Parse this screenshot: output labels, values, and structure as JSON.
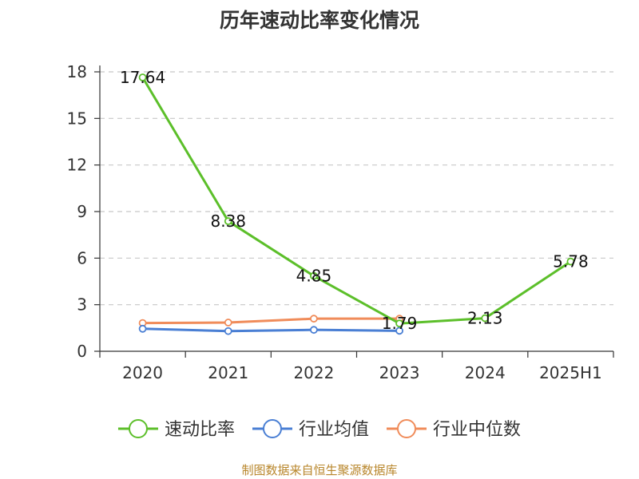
{
  "chart_data": {
    "type": "line",
    "title": "历年速动比率变化情况",
    "categories": [
      "2020",
      "2021",
      "2022",
      "2023",
      "2024",
      "2025H1"
    ],
    "ylim": [
      0,
      18
    ],
    "yticks": [
      "0",
      "3",
      "6",
      "9",
      "12",
      "15",
      "18"
    ],
    "grid": true,
    "legend_position": "bottom",
    "series": [
      {
        "name": "速动比率",
        "color": "#5cbf2a",
        "values": [
          17.64,
          8.38,
          4.85,
          1.79,
          2.13,
          5.78
        ],
        "labels": [
          "17.64",
          "8.38",
          "4.85",
          "1.79",
          "2.13",
          "5.78"
        ]
      },
      {
        "name": "行业均值",
        "color": "#4a7fd4",
        "values": [
          1.45,
          1.3,
          1.38,
          1.32,
          null,
          null
        ]
      },
      {
        "name": "行业中位数",
        "color": "#f08c5a",
        "values": [
          1.82,
          1.85,
          2.1,
          2.1,
          null,
          null
        ]
      }
    ]
  },
  "footer": {
    "source": "制图数据来自恒生聚源数据库"
  }
}
